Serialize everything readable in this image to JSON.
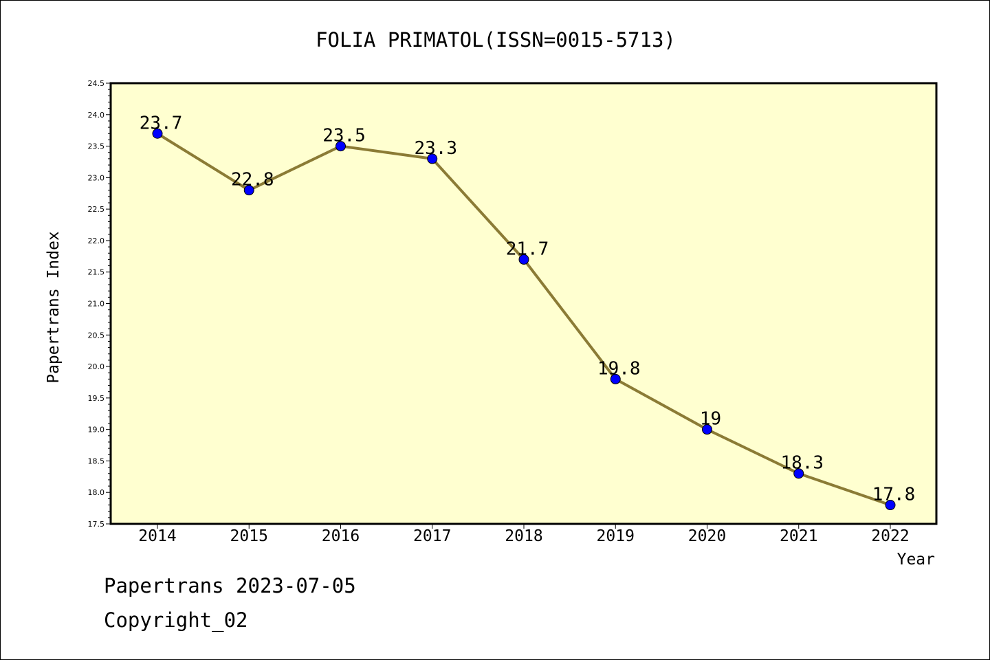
{
  "footer": {
    "generated": "Papertrans 2023-07-05",
    "copyright": "Copyright_02"
  },
  "colors": {
    "plot_background": "#ffffd0",
    "line": "#8b7b35",
    "marker": "#0000ff",
    "frame": "#000000"
  },
  "chart_data": {
    "type": "line",
    "title": "FOLIA PRIMATOL(ISSN=0015-5713)",
    "xlabel": "Year",
    "ylabel": "Papertrans Index",
    "categories": [
      "2014",
      "2015",
      "2016",
      "2017",
      "2018",
      "2019",
      "2020",
      "2021",
      "2022"
    ],
    "series": [
      {
        "values": [
          23.7,
          22.8,
          23.5,
          23.3,
          21.7,
          19.8,
          19.0,
          18.3,
          17.8
        ],
        "labels": [
          "23.7",
          "22.8",
          "23.5",
          "23.3",
          "21.7",
          "19.8",
          "19",
          "18.3",
          "17.8"
        ]
      }
    ],
    "ylim": [
      17.5,
      24.5
    ],
    "yticks": [
      "17.5",
      "18.0",
      "18.5",
      "19.0",
      "19.5",
      "20.0",
      "20.5",
      "21.0",
      "21.5",
      "22.0",
      "22.5",
      "23.0",
      "23.5",
      "24.0",
      "24.5"
    ],
    "grid": false,
    "legend": "none"
  }
}
